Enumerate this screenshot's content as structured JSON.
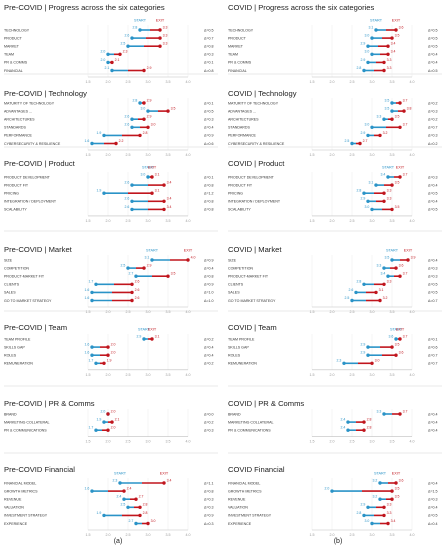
{
  "colors": {
    "start": "#2a93c7",
    "exit": "#c0151d",
    "axis": "#bfbfbf",
    "text": "#333333"
  },
  "legend": {
    "start": "START",
    "exit": "EXIT"
  },
  "captions": [
    "(a)",
    "(b)"
  ],
  "chart_data": [
    {
      "type": "dumbbell",
      "title": "Pre-COVID | Progress across the six categories",
      "xlim": [
        1.5,
        4.0
      ],
      "xticks": [
        "1.5",
        "2.0",
        "2.5",
        "3.0",
        "3.5",
        "4.0"
      ],
      "categories": [
        "TECHNOLOGY",
        "PRODUCT",
        "MARKET",
        "TEAM",
        "PR & COMMS",
        "FINANCIAL"
      ],
      "start": [
        2.8,
        2.6,
        2.5,
        2.0,
        2.0,
        2.1
      ],
      "exit": [
        3.3,
        3.3,
        3.3,
        2.3,
        2.1,
        2.9
      ],
      "delta_labels": [
        "Δ=0.5",
        "Δ=0.7",
        "Δ=0.8",
        "Δ=0.3",
        "Δ=0.1",
        "Δ=0.8"
      ],
      "show_legend": true
    },
    {
      "type": "dumbbell",
      "title": "COVID | Progress across the six categories",
      "xlim": [
        1.5,
        4.0
      ],
      "xticks": [
        "1.5",
        "2.0",
        "2.5",
        "3.0",
        "3.5",
        "4.0"
      ],
      "categories": [
        "TECHNOLOGY",
        "PRODUCT",
        "MARKET",
        "TEAM",
        "PR & COMMS",
        "FINANCIAL"
      ],
      "start": [
        3.1,
        3.0,
        2.9,
        3.0,
        2.9,
        2.8
      ],
      "exit": [
        3.6,
        3.5,
        3.4,
        3.4,
        3.3,
        3.3
      ],
      "delta_labels": [
        "Δ=0.5",
        "Δ=0.5",
        "Δ=0.5",
        "Δ=0.4",
        "Δ=0.4",
        "Δ=0.5"
      ],
      "show_legend": true
    },
    {
      "type": "dumbbell",
      "title": "Pre-COVID | Technology",
      "xlim": [
        1.5,
        4.0
      ],
      "xticks": [
        "1.5",
        "2.0",
        "2.5",
        "3.0",
        "3.5",
        "4.0"
      ],
      "categories": [
        "MATURITY OF TECHNOLOGY",
        "ADVANTAGES ...",
        "ARCHITECTURES",
        "STANDARDS",
        "PERFORMANCE",
        "CYBERSECURITY & RESILIENCE"
      ],
      "start": [
        2.8,
        3.0,
        2.6,
        2.6,
        1.9,
        1.6
      ],
      "exit": [
        2.9,
        3.5,
        2.9,
        3.0,
        2.8,
        2.2
      ],
      "delta_labels": [
        "Δ=0.1",
        "Δ=0.5",
        "Δ=0.3",
        "Δ=0.4",
        "Δ=0.9",
        "Δ=0.6"
      ],
      "show_legend": false
    },
    {
      "type": "dumbbell",
      "title": "COVID | Technology",
      "xlim": [
        1.5,
        4.0
      ],
      "xticks": [
        "1.5",
        "2.0",
        "2.5",
        "3.0",
        "3.5",
        "4.0"
      ],
      "categories": [
        "MATURITY OF TECHNOLOGY",
        "ADVANTAGES ...",
        "ARCHITECTURES",
        "STANDARDS",
        "PERFORMANCE",
        "CYBERSECURITY & RESILIENCE"
      ],
      "start": [
        3.5,
        3.5,
        3.3,
        3.0,
        2.9,
        2.5
      ],
      "exit": [
        3.7,
        3.8,
        3.5,
        3.7,
        3.2,
        2.7
      ],
      "delta_labels": [
        "Δ=0.2",
        "Δ=0.3",
        "Δ=0.2",
        "Δ=0.7",
        "Δ=0.3",
        "Δ=0.2"
      ],
      "show_legend": false
    },
    {
      "type": "dumbbell",
      "title": "Pre-COVID | Product",
      "xlim": [
        1.5,
        4.0
      ],
      "xticks": [
        "1.5",
        "2.0",
        "2.5",
        "3.0",
        "3.5",
        "4.0"
      ],
      "categories": [
        "PRODUCT DEVELOPMENT",
        "PRODUCT FIT",
        "PRICING",
        "INTEGRATION / DEPLOYMENT",
        "SCALABILITY"
      ],
      "start": [
        3.0,
        2.6,
        1.9,
        2.6,
        2.6
      ],
      "exit": [
        3.1,
        3.4,
        3.1,
        3.4,
        3.4
      ],
      "delta_labels": [
        "Δ=0.1",
        "Δ=0.8",
        "Δ=1.2",
        "Δ=0.8",
        "Δ=0.8"
      ],
      "show_legend": true
    },
    {
      "type": "dumbbell",
      "title": "COVID | Product",
      "xlim": [
        1.5,
        4.0
      ],
      "xticks": [
        "1.5",
        "2.0",
        "2.5",
        "3.0",
        "3.5",
        "4.0"
      ],
      "categories": [
        "PRODUCT DEVELOPMENT",
        "PRODUCT FIT",
        "PRICING",
        "INTEGRATION / DEPLOYMENT",
        "SCALABILITY"
      ],
      "start": [
        3.4,
        3.1,
        2.8,
        2.9,
        3.0
      ],
      "exit": [
        3.7,
        3.5,
        3.3,
        3.3,
        3.5
      ],
      "delta_labels": [
        "Δ=0.3",
        "Δ=0.4",
        "Δ=0.5",
        "Δ=0.4",
        "Δ=0.5"
      ],
      "show_legend": true
    },
    {
      "type": "dumbbell",
      "title": "Pre-COVID | Market",
      "xlim": [
        1.5,
        4.0
      ],
      "xticks": [
        "1.5",
        "2.0",
        "2.5",
        "3.0",
        "3.5",
        "4.0"
      ],
      "categories": [
        "SIZE",
        "COMPETITION",
        "PRODUCT-MARKET FIT",
        "CLIENTS",
        "SALES",
        "GO TO MARKET STRATEGY"
      ],
      "start": [
        3.1,
        2.5,
        2.7,
        1.7,
        1.6,
        1.6
      ],
      "exit": [
        4.0,
        2.9,
        3.5,
        2.6,
        2.6,
        2.6
      ],
      "delta_labels": [
        "Δ=0.9",
        "Δ=0.4",
        "Δ=0.8",
        "Δ=0.9",
        "Δ=1.0",
        "Δ=1.0"
      ],
      "show_legend": true
    },
    {
      "type": "dumbbell",
      "title": "COVID | Market",
      "xlim": [
        1.5,
        4.0
      ],
      "xticks": [
        "1.5",
        "2.0",
        "2.5",
        "3.0",
        "3.5",
        "4.0"
      ],
      "categories": [
        "SIZE",
        "COMPETITION",
        "PRODUCT-MARKET FIT",
        "CLIENTS",
        "SALES",
        "GO TO MARKET STRATEGY"
      ],
      "start": [
        3.5,
        3.3,
        3.4,
        2.8,
        2.6,
        2.5
      ],
      "exit": [
        3.9,
        3.6,
        3.7,
        3.3,
        3.1,
        3.2
      ],
      "delta_labels": [
        "Δ=0.4",
        "Δ=0.3",
        "Δ=0.3",
        "Δ=0.5",
        "Δ=0.5",
        "Δ=0.7"
      ],
      "show_legend": true
    },
    {
      "type": "dumbbell",
      "title": "Pre-COVID | Team",
      "xlim": [
        1.5,
        4.0
      ],
      "xticks": [
        "1.5",
        "2.0",
        "2.5",
        "3.0",
        "3.5",
        "4.0"
      ],
      "categories": [
        "TEAM PROFILE",
        "SKILLS GAP",
        "ROLES",
        "REMUNERATION"
      ],
      "start": [
        2.9,
        1.6,
        1.6,
        1.7
      ],
      "exit": [
        3.1,
        2.0,
        2.0,
        1.9
      ],
      "delta_labels": [
        "Δ=0.2",
        "Δ=0.4",
        "Δ=0.4",
        "Δ=0.2"
      ],
      "show_legend": true
    },
    {
      "type": "dumbbell",
      "title": "COVID | Team",
      "xlim": [
        1.5,
        4.0
      ],
      "xticks": [
        "1.5",
        "2.0",
        "2.5",
        "3.0",
        "3.5",
        "4.0"
      ],
      "categories": [
        "TEAM PROFILE",
        "SKILLS GAP",
        "ROLES",
        "REMUNERATION"
      ],
      "start": [
        3.6,
        2.9,
        2.9,
        2.3
      ],
      "exit": [
        3.7,
        3.5,
        3.6,
        3.0
      ],
      "delta_labels": [
        "Δ=0.1",
        "Δ=0.6",
        "Δ=0.7",
        "Δ=0.7"
      ],
      "show_legend": true
    },
    {
      "type": "dumbbell",
      "title": "Pre-COVID | PR & Comms",
      "xlim": [
        1.5,
        4.0
      ],
      "xticks": [
        "1.5",
        "2.0",
        "2.5",
        "3.0",
        "3.5",
        "4.0"
      ],
      "categories": [
        "BRAND",
        "MARKETING COLLATERAL",
        "PR & COMMUNICATIONS"
      ],
      "start": [
        2.0,
        1.9,
        1.7
      ],
      "exit": [
        2.0,
        2.1,
        2.0
      ],
      "delta_labels": [
        "Δ=0.0",
        "Δ=0.2",
        "Δ=0.3"
      ],
      "show_legend": false
    },
    {
      "type": "dumbbell",
      "title": "COVID | PR & Comms",
      "xlim": [
        1.5,
        4.0
      ],
      "xticks": [
        "1.5",
        "2.0",
        "2.5",
        "3.0",
        "3.5",
        "4.0"
      ],
      "categories": [
        "BRAND",
        "MARKETING COLLATERAL",
        "PR & COMMUNICATIONS"
      ],
      "start": [
        3.3,
        2.4,
        2.4
      ],
      "exit": [
        3.7,
        2.8,
        2.8
      ],
      "delta_labels": [
        "Δ=0.4",
        "Δ=0.4",
        "Δ=0.4"
      ],
      "show_legend": false
    },
    {
      "type": "dumbbell",
      "title": "Pre-COVID Financial",
      "xlim": [
        1.5,
        4.0
      ],
      "xticks": [
        "1.5",
        "2.0",
        "2.5",
        "3.0",
        "3.5",
        "4.0"
      ],
      "categories": [
        "FINANCIAL MODEL",
        "GROWTH METRICS",
        "REVENUE",
        "VALUATION",
        "INVESTMENT STRATEGY",
        "EXPERIENCE"
      ],
      "start": [
        2.3,
        1.6,
        2.4,
        2.5,
        1.9,
        2.7
      ],
      "exit": [
        3.4,
        2.4,
        2.7,
        2.8,
        2.8,
        3.0
      ],
      "delta_labels": [
        "Δ=1.1",
        "Δ=0.8",
        "Δ=0.3",
        "Δ=0.3",
        "Δ=0.9",
        "Δ=0.3"
      ],
      "show_legend": true
    },
    {
      "type": "dumbbell",
      "title": "COVID Financial",
      "xlim": [
        1.5,
        4.0
      ],
      "xticks": [
        "1.5",
        "2.0",
        "2.5",
        "3.0",
        "3.5",
        "4.0"
      ],
      "categories": [
        "FINANCIAL MODEL",
        "GROWTH METRICS",
        "REVENUE",
        "VALUATION",
        "INVESTMENT STRATEGY",
        "EXPERIENCE"
      ],
      "start": [
        3.2,
        2.0,
        3.2,
        2.9,
        2.8,
        3.0
      ],
      "exit": [
        3.6,
        3.5,
        3.5,
        3.3,
        3.3,
        3.4
      ],
      "delta_labels": [
        "Δ=0.4",
        "Δ=1.5",
        "Δ=0.3",
        "Δ=0.4",
        "Δ=0.5",
        "Δ=0.4"
      ],
      "show_legend": true
    }
  ]
}
